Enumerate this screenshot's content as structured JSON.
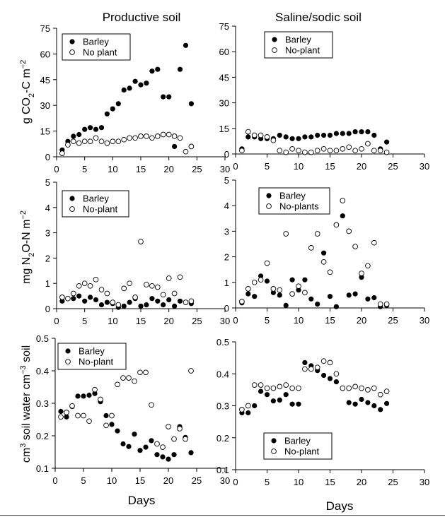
{
  "column_titles": [
    "Productive soil",
    "Saline/sodic soil"
  ],
  "row_labels": [
    {
      "main": "g CO",
      "sub": "2",
      "mid": "-C m",
      "sup": "−2"
    },
    {
      "main": "mg N",
      "sub": "2",
      "mid": "O-N m",
      "sup": "−2"
    },
    {
      "main": "cm",
      "sup1": "3",
      "mid": " soil water cm",
      "sup": "−3",
      "tail": " soil"
    }
  ],
  "x_label": "Days",
  "colors": {
    "marker": "#000000",
    "axis": "#000000",
    "open_fill": "#ffffff"
  },
  "chart_data": [
    {
      "type": "scatter",
      "panel": "co2-productive",
      "ylim": [
        0,
        75
      ],
      "yticks": [
        "0",
        "15",
        "30",
        "45",
        "60",
        "75"
      ],
      "xlim": [
        0,
        30
      ],
      "xticks": [
        "0",
        "5",
        "10",
        "15",
        "20",
        "25",
        "30"
      ],
      "legend_placement": "top-left",
      "series": [
        {
          "name": "Barley",
          "marker": "filled",
          "x": [
            1,
            2,
            3,
            4,
            5,
            6,
            7,
            8,
            9,
            10,
            11,
            12,
            13,
            14,
            15,
            16,
            17,
            18,
            19,
            20,
            21,
            22,
            23,
            24
          ],
          "y": [
            4,
            9,
            12,
            13,
            16,
            17,
            16,
            17,
            25,
            28,
            31,
            39,
            40,
            44,
            42,
            43,
            50,
            51,
            35,
            35,
            6,
            51,
            65,
            31
          ]
        },
        {
          "name": "No plant",
          "marker": "open",
          "x": [
            1,
            2,
            3,
            4,
            5,
            6,
            7,
            8,
            9,
            10,
            11,
            12,
            13,
            14,
            15,
            16,
            17,
            18,
            19,
            20,
            21,
            22,
            23,
            24
          ],
          "y": [
            2,
            7,
            9,
            8,
            9,
            9,
            11,
            9,
            8,
            9,
            9,
            10,
            11,
            11,
            12,
            12,
            11,
            12,
            13,
            13,
            12,
            11,
            3,
            6
          ]
        }
      ]
    },
    {
      "type": "scatter",
      "panel": "co2-saline",
      "ylim": [
        0,
        75
      ],
      "yticks": [
        "0",
        "15",
        "30",
        "45",
        "60",
        "75"
      ],
      "xlim": [
        0,
        30
      ],
      "xticks": [
        "0",
        "5",
        "10",
        "15",
        "20",
        "25",
        "30"
      ],
      "legend_placement": "top-left",
      "series": [
        {
          "name": "Barley",
          "marker": "filled",
          "x": [
            1,
            2,
            3,
            4,
            5,
            6,
            7,
            8,
            9,
            10,
            11,
            12,
            13,
            14,
            15,
            16,
            17,
            18,
            19,
            20,
            21,
            22,
            23,
            24
          ],
          "y": [
            3,
            10,
            10,
            9,
            9,
            9,
            11,
            10,
            9,
            9,
            10,
            10,
            11,
            11,
            11,
            12,
            12,
            12,
            13,
            13,
            13,
            11,
            3,
            7
          ]
        },
        {
          "name": "No-plant",
          "marker": "open",
          "x": [
            1,
            2,
            3,
            4,
            5,
            6,
            7,
            8,
            9,
            10,
            11,
            12,
            13,
            14,
            15,
            16,
            17,
            18,
            19,
            20,
            21,
            22,
            23,
            24
          ],
          "y": [
            2,
            13,
            11,
            11,
            10,
            8,
            2,
            1,
            3,
            2,
            1,
            1,
            2,
            3,
            2,
            2,
            3,
            4,
            2,
            3,
            6,
            2,
            2,
            1
          ]
        }
      ]
    },
    {
      "type": "scatter",
      "panel": "n2o-productive",
      "ylim": [
        0,
        5
      ],
      "yticks": [
        "0",
        "1",
        "2",
        "3",
        "4",
        "5"
      ],
      "xlim": [
        0,
        30
      ],
      "xticks": [
        "0",
        "5",
        "10",
        "15",
        "20",
        "25",
        "30"
      ],
      "legend_placement": "top-left",
      "series": [
        {
          "name": "Barley",
          "marker": "filled",
          "x": [
            1,
            2,
            3,
            4,
            5,
            6,
            7,
            8,
            9,
            10,
            11,
            12,
            13,
            14,
            15,
            16,
            17,
            18,
            19,
            20,
            21,
            22,
            23,
            24
          ],
          "y": [
            0.3,
            0.4,
            0.4,
            0.5,
            0.3,
            0.45,
            0.35,
            0.15,
            0.25,
            0.2,
            0.05,
            0.1,
            0.25,
            0.4,
            0.1,
            0.15,
            0.4,
            0.3,
            0.15,
            0.35,
            0.1,
            0.3,
            0.25,
            0.2
          ]
        },
        {
          "name": "No-plant",
          "marker": "open",
          "x": [
            1,
            2,
            3,
            4,
            5,
            6,
            7,
            8,
            9,
            10,
            11,
            12,
            13,
            14,
            15,
            16,
            17,
            18,
            19,
            20,
            21,
            22,
            23,
            24
          ],
          "y": [
            0.45,
            0.4,
            0.6,
            0.9,
            1.0,
            0.9,
            1.15,
            0.75,
            0.6,
            0.25,
            0.15,
            0.8,
            1.0,
            0.45,
            2.65,
            0.95,
            0.9,
            0.85,
            0.55,
            1.2,
            0.6,
            1.25,
            0.25,
            0.3
          ]
        }
      ]
    },
    {
      "type": "scatter",
      "panel": "n2o-saline",
      "ylim": [
        0,
        5
      ],
      "yticks": [
        "0",
        "1",
        "2",
        "3",
        "4",
        "5"
      ],
      "xlim": [
        0,
        30
      ],
      "xticks": [
        "0",
        "5",
        "10",
        "15",
        "20",
        "25",
        "30"
      ],
      "legend_placement": "top-left",
      "series": [
        {
          "name": "Barley",
          "marker": "filled",
          "x": [
            1,
            2,
            3,
            4,
            5,
            6,
            7,
            8,
            9,
            10,
            11,
            12,
            13,
            14,
            15,
            16,
            17,
            18,
            19,
            20,
            21,
            22,
            23,
            24
          ],
          "y": [
            0.2,
            0.55,
            0.45,
            1.25,
            1.05,
            0.6,
            0.5,
            0.1,
            1.1,
            0.7,
            1.1,
            0.35,
            0.15,
            2.15,
            0.45,
            0.05,
            3.6,
            0.5,
            0.55,
            1.2,
            0.35,
            0.4,
            0.05,
            0.1
          ]
        },
        {
          "name": "No-plants",
          "marker": "open",
          "x": [
            1,
            2,
            3,
            4,
            5,
            6,
            7,
            8,
            9,
            10,
            11,
            12,
            13,
            14,
            15,
            16,
            17,
            18,
            19,
            20,
            21,
            22,
            23,
            24
          ],
          "y": [
            0.25,
            0.75,
            1.0,
            1.1,
            1.75,
            0.75,
            0.7,
            2.9,
            0.55,
            0.85,
            0.6,
            2.35,
            2.9,
            1.8,
            1.4,
            3.25,
            4.2,
            3.0,
            2.4,
            1.35,
            1.65,
            2.55,
            0.15,
            0.15
          ]
        }
      ]
    },
    {
      "type": "scatter",
      "panel": "water-productive",
      "ylim": [
        0.1,
        0.5
      ],
      "yticks": [
        "0.1",
        "0.2",
        "0.3",
        "0.4",
        "0.5"
      ],
      "xlim": [
        0,
        30
      ],
      "xticks": [
        "0",
        "5",
        "10",
        "15",
        "20",
        "25",
        "30"
      ],
      "legend_placement": "top-left",
      "series": [
        {
          "name": "Barley",
          "marker": "filled",
          "x": [
            1,
            2,
            3,
            4,
            5,
            6,
            7,
            8,
            9,
            10,
            11,
            12,
            13,
            14,
            15,
            16,
            17,
            18,
            19,
            20,
            21,
            22,
            23,
            24
          ],
          "y": [
            0.275,
            0.258,
            0.29,
            0.322,
            0.322,
            0.325,
            0.33,
            0.305,
            0.262,
            0.235,
            0.215,
            0.175,
            0.167,
            0.205,
            0.155,
            0.165,
            0.185,
            0.142,
            0.135,
            0.128,
            0.142,
            0.228,
            0.195,
            0.148
          ]
        },
        {
          "name": "No-plant",
          "marker": "open",
          "x": [
            1,
            2,
            3,
            4,
            5,
            6,
            7,
            8,
            9,
            10,
            11,
            12,
            13,
            14,
            15,
            16,
            17,
            18,
            19,
            20,
            21,
            22,
            23,
            24
          ],
          "y": [
            0.258,
            0.272,
            0.292,
            0.262,
            0.262,
            0.245,
            0.342,
            0.312,
            0.232,
            0.262,
            0.358,
            0.378,
            0.378,
            0.368,
            0.395,
            0.395,
            0.295,
            0.175,
            0.165,
            0.228,
            0.19,
            0.222,
            0.19,
            0.4
          ]
        }
      ]
    },
    {
      "type": "scatter",
      "panel": "water-saline",
      "ylim": [
        0.1,
        0.5
      ],
      "yticks": [
        "0.1",
        "0.2",
        "0.3",
        "0.4",
        "0.5"
      ],
      "xlim": [
        0,
        30
      ],
      "xticks": [
        "0",
        "5",
        "10",
        "15",
        "20",
        "25",
        "30"
      ],
      "legend_placement": "bottom-left",
      "series": [
        {
          "name": "Barley",
          "marker": "filled",
          "x": [
            1,
            2,
            3,
            4,
            5,
            6,
            7,
            8,
            9,
            10,
            11,
            12,
            13,
            14,
            15,
            16,
            17,
            18,
            19,
            20,
            21,
            22,
            23,
            24
          ],
          "y": [
            0.278,
            0.278,
            0.3,
            0.345,
            0.335,
            0.315,
            0.318,
            0.335,
            0.305,
            0.305,
            0.435,
            0.425,
            0.41,
            0.395,
            0.385,
            0.375,
            0.355,
            0.31,
            0.305,
            0.32,
            0.31,
            0.3,
            0.288,
            0.307
          ]
        },
        {
          "name": "No-plant",
          "marker": "open",
          "x": [
            1,
            2,
            3,
            4,
            5,
            6,
            7,
            8,
            9,
            10,
            11,
            12,
            13,
            14,
            15,
            16,
            17,
            18,
            19,
            20,
            21,
            22,
            23,
            24
          ],
          "y": [
            0.288,
            0.3,
            0.365,
            0.365,
            0.355,
            0.355,
            0.36,
            0.365,
            0.355,
            0.355,
            0.415,
            0.415,
            0.42,
            0.44,
            0.435,
            0.4,
            0.355,
            0.355,
            0.36,
            0.355,
            0.35,
            0.355,
            0.335,
            0.345
          ]
        }
      ]
    }
  ]
}
